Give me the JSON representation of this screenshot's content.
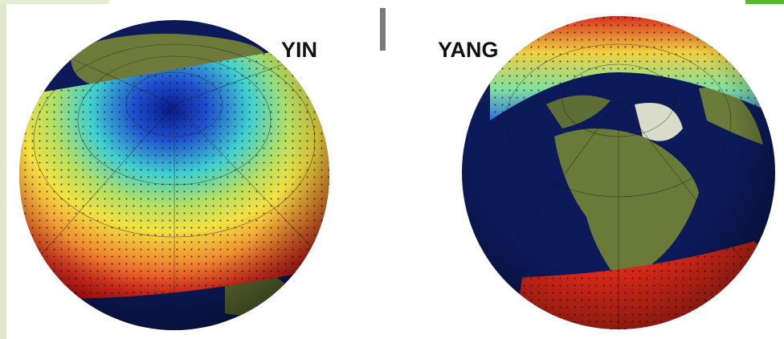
{
  "labels": {
    "yin": "YIN",
    "yang": "YANG"
  }
}
